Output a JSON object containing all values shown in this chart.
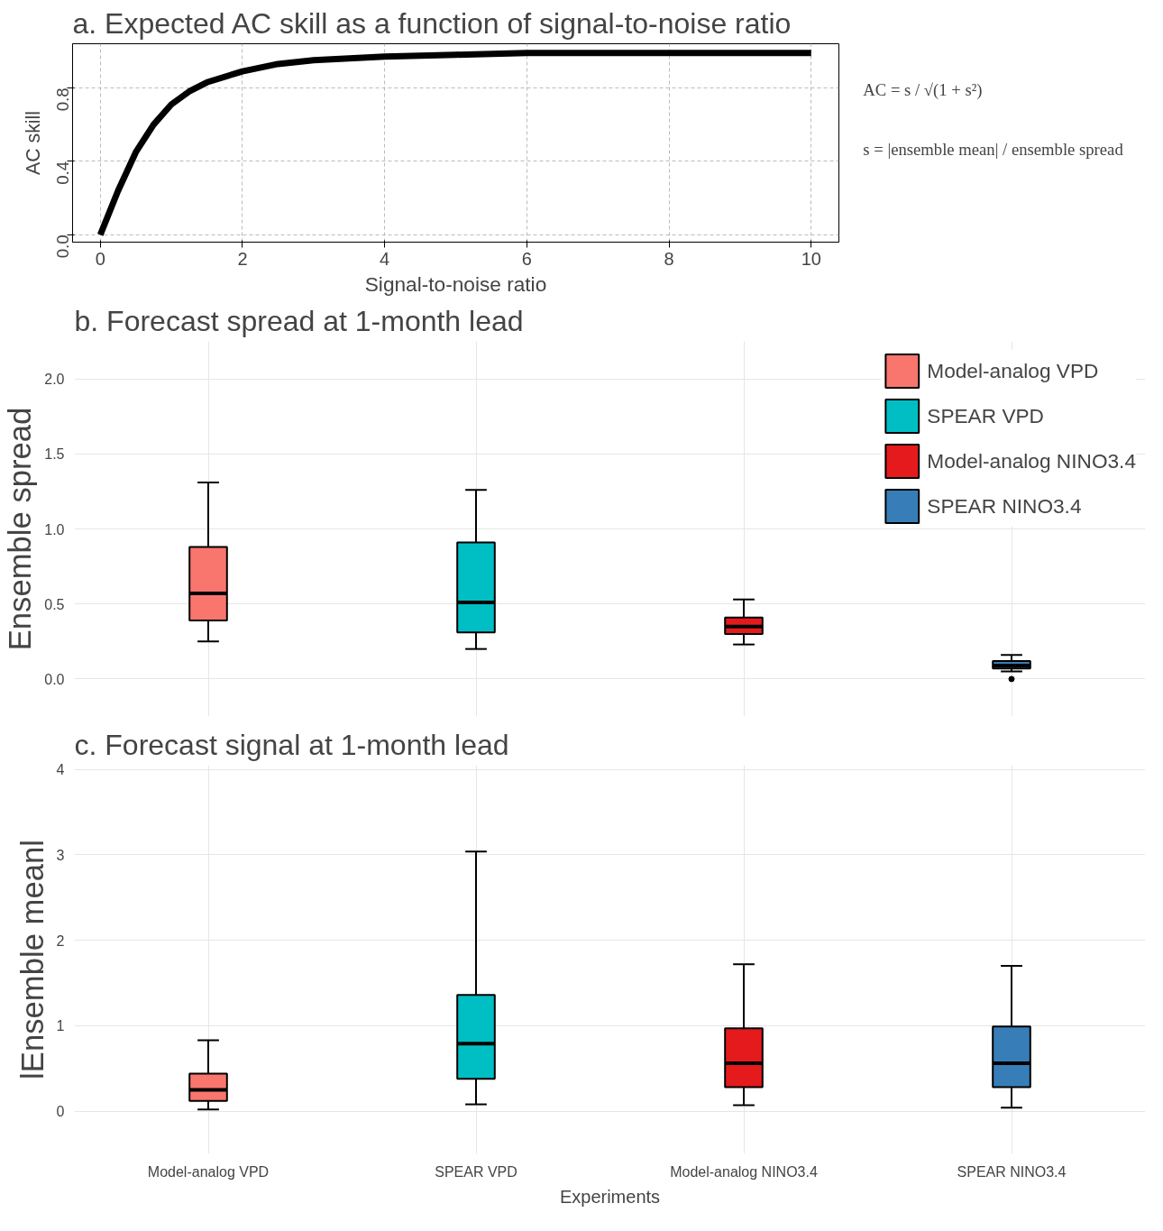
{
  "chart_data": [
    {
      "type": "line",
      "title": "a. Expected AC skill as a function of signal-to-noise ratio",
      "xlabel": "Signal-to-noise ratio",
      "ylabel": "AC skill",
      "x": [
        0,
        0.25,
        0.5,
        0.75,
        1,
        1.25,
        1.5,
        2,
        2.5,
        3,
        4,
        5,
        6,
        7,
        8,
        9,
        10
      ],
      "series": [
        {
          "color": "#000000",
          "values": [
            0,
            0.24,
            0.45,
            0.6,
            0.71,
            0.78,
            0.83,
            0.89,
            0.93,
            0.95,
            0.97,
            0.98,
            0.99,
            0.99,
            0.99,
            0.99,
            0.99
          ]
        }
      ],
      "xlim": [
        -0.39,
        10.39
      ],
      "xticks": [
        0,
        2,
        4,
        6,
        8,
        10
      ],
      "ylim": [
        -0.04,
        1.04
      ],
      "yticks": [
        {
          "value": 0,
          "label": "0.0"
        },
        {
          "value": 0.4,
          "label": "0.4"
        },
        {
          "value": 0.8,
          "label": "0.8"
        }
      ],
      "grid": true,
      "line_style": "solid",
      "annotations": [
        "AC = s / √(1 + s²)",
        "s = |ensemble mean| / ensemble spread"
      ]
    },
    {
      "type": "box",
      "title": "b. Forecast spread at 1-month lead",
      "ylabel": "Ensemble spread",
      "categories": [
        null,
        null,
        null,
        null
      ],
      "series": [
        {
          "name": "Model-analog VPD",
          "color": "#f8766d",
          "boxes": [
            {
              "low": 0.25,
              "q1": 0.39,
              "median": 0.57,
              "q3": 0.88,
              "high": 1.31
            },
            null,
            null,
            null
          ]
        },
        {
          "name": "SPEAR VPD",
          "color": "#00bfc4",
          "boxes": [
            null,
            {
              "low": 0.2,
              "q1": 0.31,
              "median": 0.51,
              "q3": 0.91,
              "high": 1.26
            },
            null,
            null
          ]
        },
        {
          "name": "Model-analog NINO3.4",
          "color": "#e41a1c",
          "boxes": [
            null,
            null,
            {
              "low": 0.23,
              "q1": 0.3,
              "median": 0.35,
              "q3": 0.41,
              "high": 0.53
            },
            null
          ]
        },
        {
          "name": "SPEAR NINO3.4",
          "color": "#377eb8",
          "boxes": [
            null,
            null,
            null,
            {
              "low": 0.05,
              "q1": 0.07,
              "median": 0.09,
              "q3": 0.12,
              "high": 0.16,
              "outliers": [
                0.0
              ]
            }
          ]
        }
      ],
      "ylim": [
        -0.25,
        2.25
      ],
      "yticks": [
        {
          "value": 0,
          "label": "0.0"
        },
        {
          "value": 0.5,
          "label": "0.5"
        },
        {
          "value": 1,
          "label": "1.0"
        },
        {
          "value": 1.5,
          "label": "1.5"
        },
        {
          "value": 2,
          "label": "2.0"
        }
      ],
      "grid": true,
      "legend": "top right"
    },
    {
      "type": "box",
      "title": "c. Forecast signal at 1-month lead",
      "ylabel": "lEnsemble meanl",
      "xlabel": "Experiments",
      "categories": [
        "Model-analog VPD",
        "SPEAR VPD",
        "Model-analog NINO3.4",
        "SPEAR NINO3.4"
      ],
      "series": [
        {
          "color": "#f8766d",
          "boxes": [
            {
              "low": 0.02,
              "q1": 0.12,
              "median": 0.25,
              "q3": 0.44,
              "high": 0.83
            },
            null,
            null,
            null
          ]
        },
        {
          "color": "#00bfc4",
          "boxes": [
            null,
            {
              "low": 0.08,
              "q1": 0.38,
              "median": 0.79,
              "q3": 1.36,
              "high": 3.04
            },
            null,
            null
          ]
        },
        {
          "color": "#e41a1c",
          "boxes": [
            null,
            null,
            {
              "low": 0.07,
              "q1": 0.28,
              "median": 0.56,
              "q3": 0.97,
              "high": 1.72
            },
            null
          ]
        },
        {
          "color": "#377eb8",
          "boxes": [
            null,
            null,
            null,
            {
              "low": 0.04,
              "q1": 0.28,
              "median": 0.56,
              "q3": 0.99,
              "high": 1.7
            }
          ]
        }
      ],
      "ylim": [
        -0.5,
        4.05
      ],
      "yticks": [
        0,
        1,
        2,
        3,
        4
      ],
      "grid": true
    }
  ]
}
